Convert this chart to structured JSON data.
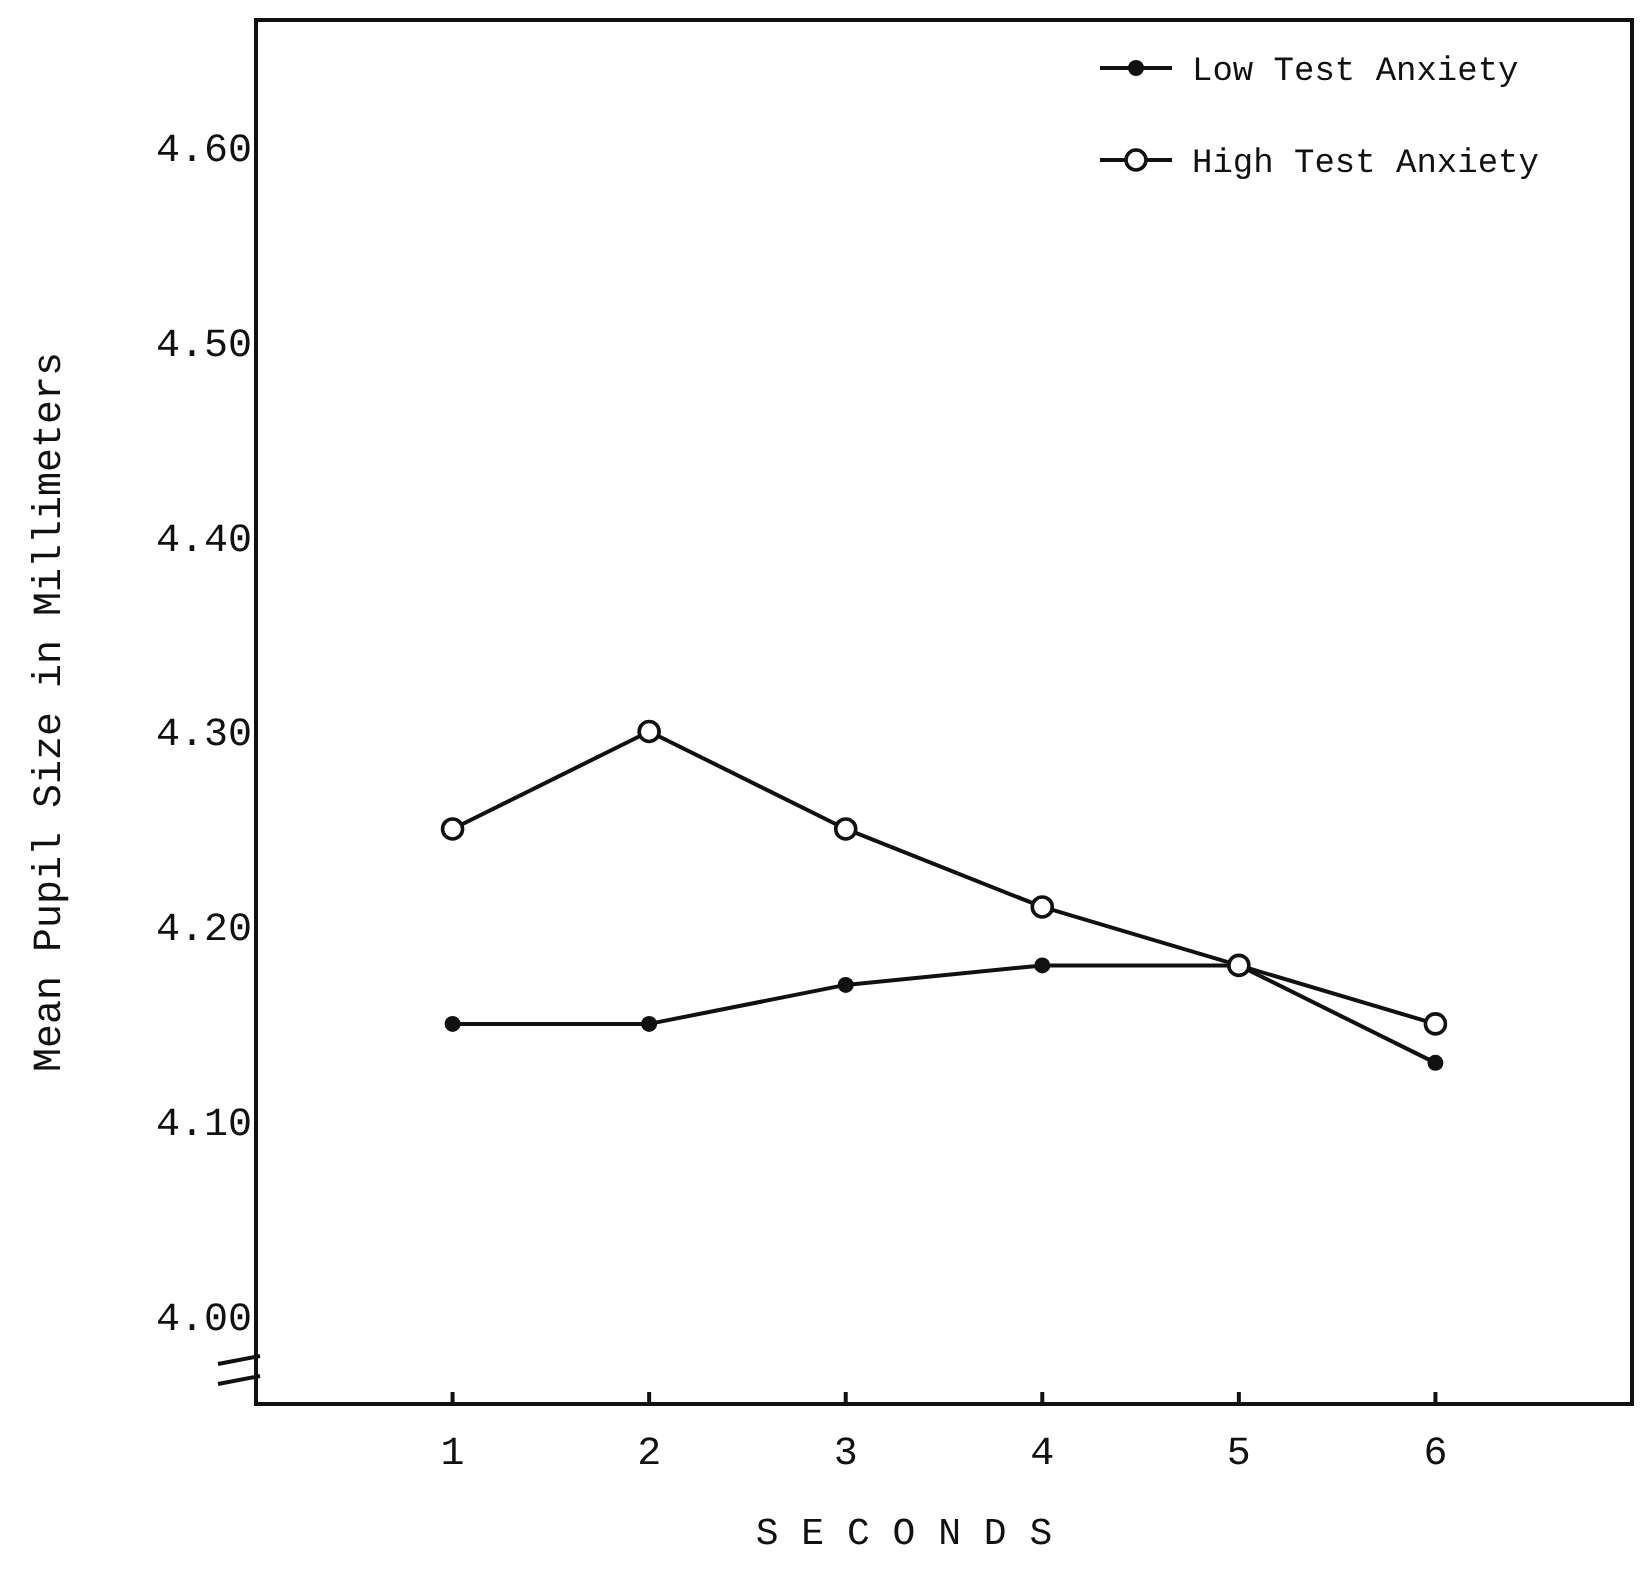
{
  "chart_data": {
    "type": "line",
    "xlabel": "S E C O N D S",
    "ylabel": "Mean Pupil Size in Millimeters",
    "x": [
      1,
      2,
      3,
      4,
      5,
      6
    ],
    "series": [
      {
        "name": "Low Test Anxiety",
        "color": "#111111",
        "values": [
          4.15,
          4.15,
          4.17,
          4.18,
          4.18,
          4.13
        ]
      },
      {
        "name": "High Test Anxiety",
        "color": "#111111",
        "values": [
          4.25,
          4.3,
          4.25,
          4.21,
          4.18,
          4.15
        ]
      }
    ],
    "xlim": [
      0,
      7
    ],
    "xticks": [
      1,
      2,
      3,
      4,
      5,
      6
    ],
    "ylim": [
      3.955,
      4.665
    ],
    "yticks": [
      {
        "value": 4.0,
        "label": "4.00"
      },
      {
        "value": 4.1,
        "label": "4.10"
      },
      {
        "value": 4.2,
        "label": "4.20"
      },
      {
        "value": 4.3,
        "label": "4.30"
      },
      {
        "value": 4.4,
        "label": "4.40"
      },
      {
        "value": 4.5,
        "label": "4.50"
      },
      {
        "value": 4.6,
        "label": "4.60"
      }
    ],
    "grid": false,
    "legend": "top right",
    "line_style": "solid",
    "marker": "circle"
  }
}
